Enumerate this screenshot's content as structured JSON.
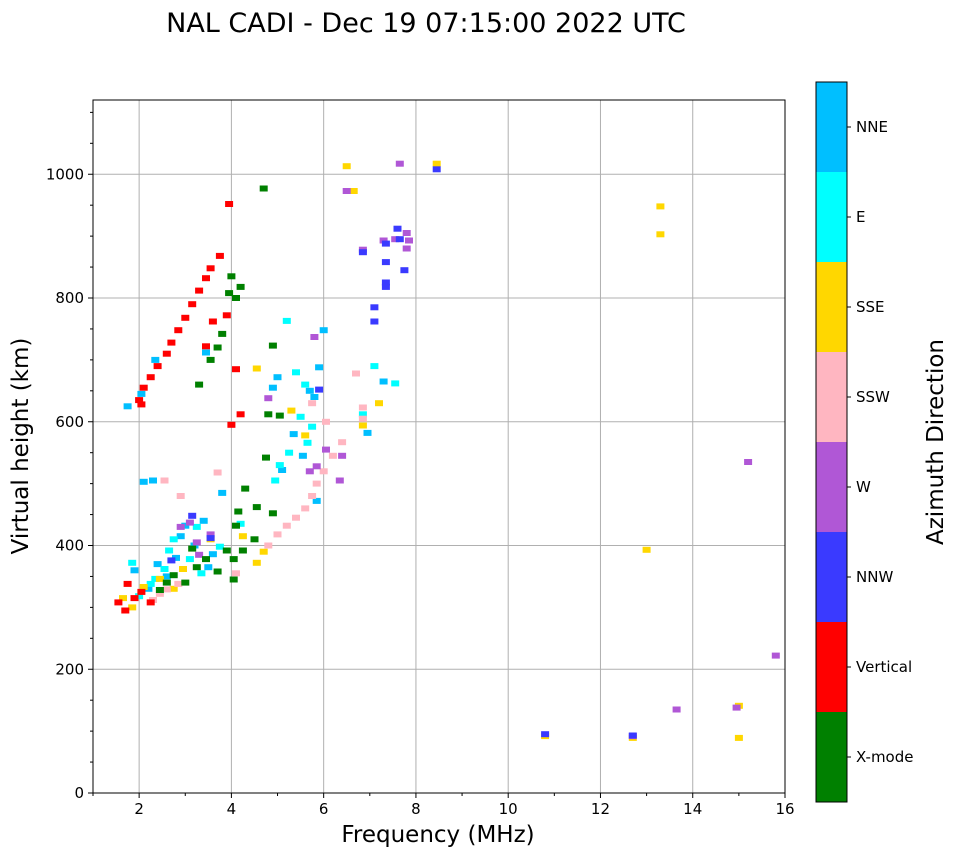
{
  "chart_data": {
    "type": "scatter",
    "title": "NAL CADI - Dec 19 07:15:00 2022 UTC",
    "xlabel": "Frequency (MHz)",
    "ylabel": "Virtual height (km)",
    "xlim": [
      1,
      16
    ],
    "ylim": [
      0,
      1120
    ],
    "xticks": [
      2,
      4,
      6,
      8,
      10,
      12,
      14,
      16
    ],
    "yticks": [
      0,
      200,
      400,
      600,
      800,
      1000
    ],
    "grid": true,
    "colorbar": {
      "label": "Azimuth Direction",
      "categories": [
        {
          "name": "X-mode",
          "color": "#008000"
        },
        {
          "name": "Vertical",
          "color": "#ff0000"
        },
        {
          "name": "NNW",
          "color": "#3a3aff"
        },
        {
          "name": "W",
          "color": "#b057d6"
        },
        {
          "name": "SSW",
          "color": "#ffb6c1"
        },
        {
          "name": "SSE",
          "color": "#ffd700"
        },
        {
          "name": "E",
          "color": "#00ffff"
        },
        {
          "name": "NNE",
          "color": "#00bfff"
        }
      ]
    },
    "series": [
      {
        "name": "NNE",
        "points": [
          [
            1.75,
            625
          ],
          [
            2.05,
            645
          ],
          [
            2.1,
            503
          ],
          [
            2.3,
            505
          ],
          [
            2.4,
            370
          ],
          [
            2.6,
            350
          ],
          [
            2.8,
            380
          ],
          [
            2.9,
            415
          ],
          [
            3.0,
            432
          ],
          [
            3.2,
            400
          ],
          [
            3.5,
            365
          ],
          [
            3.6,
            386
          ],
          [
            3.8,
            485
          ],
          [
            4.9,
            655
          ],
          [
            5.0,
            672
          ],
          [
            5.1,
            522
          ],
          [
            5.35,
            580
          ],
          [
            5.55,
            545
          ],
          [
            5.7,
            650
          ],
          [
            5.8,
            640
          ],
          [
            5.9,
            688
          ],
          [
            6.0,
            748
          ],
          [
            7.3,
            665
          ],
          [
            6.95,
            582
          ],
          [
            5.85,
            472
          ],
          [
            3.4,
            440
          ],
          [
            2.2,
            330
          ],
          [
            1.9,
            360
          ],
          [
            3.45,
            712
          ],
          [
            2.35,
            700
          ]
        ]
      },
      {
        "name": "E",
        "points": [
          [
            1.85,
            372
          ],
          [
            2.25,
            338
          ],
          [
            2.55,
            362
          ],
          [
            2.75,
            410
          ],
          [
            3.1,
            378
          ],
          [
            3.35,
            355
          ],
          [
            3.75,
            398
          ],
          [
            4.2,
            435
          ],
          [
            4.95,
            505
          ],
          [
            5.2,
            763
          ],
          [
            5.4,
            680
          ],
          [
            5.6,
            660
          ],
          [
            5.25,
            550
          ],
          [
            5.5,
            608
          ],
          [
            5.65,
            566
          ],
          [
            7.55,
            662
          ],
          [
            7.1,
            690
          ],
          [
            6.85,
            612
          ],
          [
            3.25,
            430
          ],
          [
            2.65,
            392
          ],
          [
            2.0,
            318
          ],
          [
            2.35,
            346
          ],
          [
            5.05,
            530
          ],
          [
            5.75,
            592
          ]
        ]
      },
      {
        "name": "SSE",
        "points": [
          [
            1.65,
            315
          ],
          [
            1.85,
            300
          ],
          [
            2.1,
            333
          ],
          [
            2.45,
            346
          ],
          [
            2.75,
            330
          ],
          [
            2.95,
            362
          ],
          [
            3.55,
            410
          ],
          [
            4.25,
            415
          ],
          [
            4.55,
            372
          ],
          [
            4.7,
            390
          ],
          [
            4.55,
            686
          ],
          [
            6.5,
            1013
          ],
          [
            6.65,
            973
          ],
          [
            6.85,
            594
          ],
          [
            7.2,
            630
          ],
          [
            8.45,
            1017
          ],
          [
            13.3,
            948
          ],
          [
            13.3,
            903
          ],
          [
            13.0,
            393
          ],
          [
            15.0,
            141
          ],
          [
            15.0,
            89
          ],
          [
            12.7,
            89
          ],
          [
            10.8,
            92
          ],
          [
            5.3,
            618
          ],
          [
            5.6,
            578
          ]
        ]
      },
      {
        "name": "SSW",
        "points": [
          [
            2.3,
            312
          ],
          [
            2.45,
            322
          ],
          [
            2.6,
            329
          ],
          [
            2.85,
            338
          ],
          [
            2.9,
            480
          ],
          [
            4.1,
            355
          ],
          [
            4.8,
            400
          ],
          [
            5.0,
            418
          ],
          [
            5.2,
            432
          ],
          [
            5.4,
            445
          ],
          [
            5.6,
            460
          ],
          [
            5.75,
            480
          ],
          [
            5.85,
            500
          ],
          [
            6.0,
            520
          ],
          [
            6.2,
            545
          ],
          [
            6.4,
            567
          ],
          [
            5.75,
            630
          ],
          [
            6.85,
            623
          ],
          [
            6.85,
            605
          ],
          [
            6.7,
            678
          ],
          [
            6.05,
            600
          ],
          [
            3.7,
            518
          ],
          [
            2.55,
            505
          ]
        ]
      },
      {
        "name": "W",
        "points": [
          [
            2.9,
            430
          ],
          [
            3.1,
            437
          ],
          [
            3.25,
            405
          ],
          [
            3.3,
            385
          ],
          [
            3.55,
            418
          ],
          [
            4.8,
            638
          ],
          [
            5.7,
            520
          ],
          [
            5.85,
            528
          ],
          [
            6.05,
            555
          ],
          [
            6.35,
            505
          ],
          [
            6.4,
            545
          ],
          [
            5.8,
            737
          ],
          [
            6.5,
            973
          ],
          [
            6.85,
            878
          ],
          [
            7.55,
            895
          ],
          [
            7.8,
            905
          ],
          [
            7.8,
            880
          ],
          [
            7.85,
            893
          ],
          [
            7.65,
            1017
          ],
          [
            7.3,
            893
          ],
          [
            15.2,
            535
          ],
          [
            15.8,
            222
          ],
          [
            13.65,
            135
          ],
          [
            14.95,
            138
          ],
          [
            12.7,
            92
          ]
        ]
      },
      {
        "name": "NNW",
        "points": [
          [
            7.1,
            785
          ],
          [
            7.1,
            762
          ],
          [
            7.35,
            858
          ],
          [
            7.35,
            825
          ],
          [
            7.35,
            818
          ],
          [
            7.35,
            888
          ],
          [
            7.6,
            912
          ],
          [
            7.65,
            895
          ],
          [
            7.75,
            845
          ],
          [
            6.85,
            874
          ],
          [
            8.45,
            1008
          ],
          [
            10.8,
            95
          ],
          [
            12.7,
            93
          ],
          [
            3.55,
            412
          ],
          [
            2.7,
            376
          ],
          [
            3.15,
            448
          ],
          [
            5.9,
            652
          ]
        ]
      },
      {
        "name": "Vertical",
        "points": [
          [
            1.55,
            308
          ],
          [
            1.7,
            295
          ],
          [
            1.9,
            315
          ],
          [
            2.05,
            325
          ],
          [
            2.25,
            308
          ],
          [
            1.75,
            338
          ],
          [
            2.0,
            635
          ],
          [
            2.1,
            655
          ],
          [
            2.25,
            672
          ],
          [
            2.4,
            690
          ],
          [
            2.6,
            710
          ],
          [
            2.7,
            728
          ],
          [
            2.85,
            748
          ],
          [
            3.0,
            768
          ],
          [
            3.15,
            790
          ],
          [
            3.3,
            812
          ],
          [
            3.45,
            832
          ],
          [
            3.55,
            848
          ],
          [
            3.75,
            868
          ],
          [
            3.95,
            952
          ],
          [
            4.1,
            685
          ],
          [
            3.6,
            762
          ],
          [
            3.9,
            772
          ],
          [
            4.2,
            612
          ],
          [
            4.0,
            595
          ],
          [
            2.05,
            628
          ],
          [
            3.45,
            722
          ]
        ]
      },
      {
        "name": "X-mode",
        "points": [
          [
            2.6,
            340
          ],
          [
            2.75,
            352
          ],
          [
            3.0,
            340
          ],
          [
            3.25,
            365
          ],
          [
            3.45,
            378
          ],
          [
            3.7,
            358
          ],
          [
            4.05,
            345
          ],
          [
            4.05,
            378
          ],
          [
            4.25,
            392
          ],
          [
            4.5,
            410
          ],
          [
            4.15,
            455
          ],
          [
            4.3,
            492
          ],
          [
            4.55,
            462
          ],
          [
            4.9,
            452
          ],
          [
            4.8,
            612
          ],
          [
            5.05,
            610
          ],
          [
            4.0,
            835
          ],
          [
            4.1,
            800
          ],
          [
            4.2,
            818
          ],
          [
            3.95,
            808
          ],
          [
            3.8,
            742
          ],
          [
            3.7,
            720
          ],
          [
            3.55,
            700
          ],
          [
            4.7,
            977
          ],
          [
            4.9,
            723
          ],
          [
            3.3,
            660
          ],
          [
            4.75,
            542
          ],
          [
            3.9,
            392
          ],
          [
            4.1,
            432
          ],
          [
            3.15,
            395
          ],
          [
            2.45,
            328
          ]
        ]
      }
    ]
  }
}
